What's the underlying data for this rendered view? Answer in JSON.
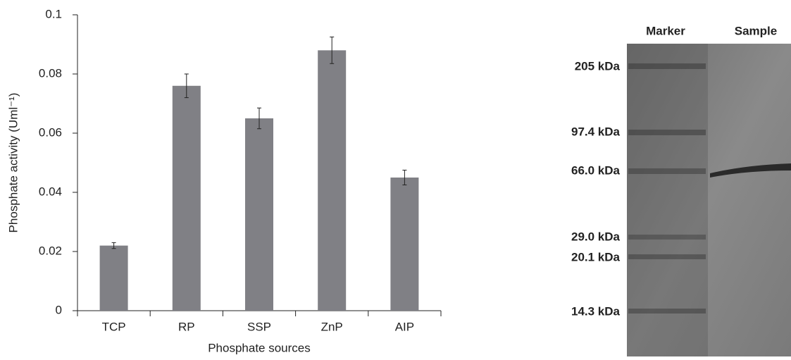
{
  "chart_data": {
    "type": "bar",
    "x_label": "Phosphate sources",
    "y_label": "Phosphate activity (Uml⁻¹)",
    "categories": [
      "TCP",
      "RP",
      "SSP",
      "ZnP",
      "AIP"
    ],
    "values": [
      0.022,
      0.076,
      0.065,
      0.088,
      0.045
    ],
    "errors": [
      0.001,
      0.004,
      0.0035,
      0.0045,
      0.0025
    ],
    "color": "#808085",
    "ylim": [
      0,
      0.1
    ],
    "yticks": [
      0,
      0.02,
      0.04,
      0.06,
      0.08,
      0.1
    ]
  },
  "gel": {
    "lanes": [
      "Marker",
      "Sample"
    ],
    "markers": [
      "205 kDa",
      "97.4 kDa",
      "66.0 kDa",
      "29.0 kDa",
      "20.1 kDa",
      "14.3 kDa"
    ]
  }
}
